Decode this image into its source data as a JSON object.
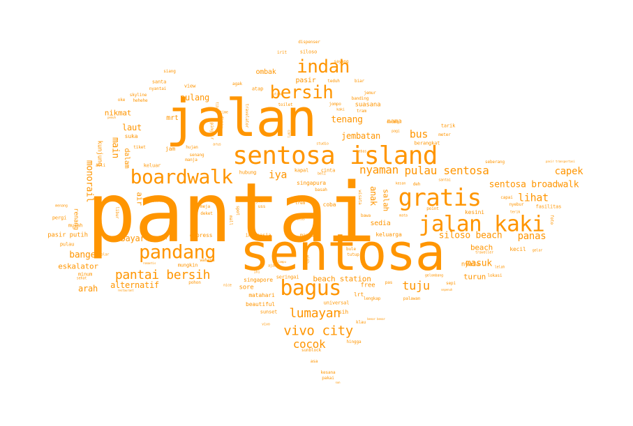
{
  "color": "#ff9500",
  "words": [
    {
      "text": "pantai",
      "size": 1.0
    },
    {
      "text": "sentosa",
      "size": 0.66
    },
    {
      "text": "jalan",
      "size": 0.68
    },
    {
      "text": "sentosa island",
      "size": 0.32
    },
    {
      "text": "gratis",
      "size": 0.3
    },
    {
      "text": "jalan kaki",
      "size": 0.27
    },
    {
      "text": "bagus",
      "size": 0.27
    },
    {
      "text": "boardwalk",
      "size": 0.25
    },
    {
      "text": "pandang",
      "size": 0.24
    },
    {
      "text": "bersih",
      "size": 0.23
    },
    {
      "text": "indah",
      "size": 0.23
    },
    {
      "text": "pantai bersih",
      "size": 0.16
    },
    {
      "text": "lumayan",
      "size": 0.16
    },
    {
      "text": "vivo city",
      "size": 0.17
    },
    {
      "text": "tuju",
      "size": 0.15
    },
    {
      "text": "pulau sentosa",
      "size": 0.14
    },
    {
      "text": "nyaman",
      "size": 0.14
    },
    {
      "text": "cocok",
      "size": 0.14
    },
    {
      "text": "iya",
      "size": 0.13
    },
    {
      "text": "lihat",
      "size": 0.13
    },
    {
      "text": "capek",
      "size": 0.12
    },
    {
      "text": "panas",
      "size": 0.12
    },
    {
      "text": "sentosa broadwalk",
      "size": 0.11
    },
    {
      "text": "siloso beach",
      "size": 0.11
    },
    {
      "text": "masuk",
      "size": 0.11
    },
    {
      "text": "bus",
      "size": 0.12
    },
    {
      "text": "tenang",
      "size": 0.11
    },
    {
      "text": "jembatan",
      "size": 0.1
    },
    {
      "text": "pulang",
      "size": 0.1
    },
    {
      "text": "laut",
      "size": 0.1
    },
    {
      "text": "nikmat",
      "size": 0.09
    },
    {
      "text": "main",
      "size": 0.11
    },
    {
      "text": "monorail",
      "size": 0.11
    },
    {
      "text": "banget",
      "size": 0.11
    },
    {
      "text": "bayar",
      "size": 0.1
    },
    {
      "text": "eskalator",
      "size": 0.09
    },
    {
      "text": "alternatif",
      "size": 0.1
    },
    {
      "text": "arah",
      "size": 0.1
    },
    {
      "text": "beach station",
      "size": 0.09
    },
    {
      "text": "turun",
      "size": 0.09
    },
    {
      "text": "beach",
      "size": 0.09
    },
    {
      "text": "nyata",
      "size": 0.07
    },
    {
      "text": "anak",
      "size": 0.1
    },
    {
      "text": "salah",
      "size": 0.09
    },
    {
      "text": "sedia",
      "size": 0.08
    },
    {
      "text": "keluarga",
      "size": 0.06
    },
    {
      "text": "pasir putih",
      "size": 0.07
    },
    {
      "text": "renang",
      "size": 0.07
    },
    {
      "text": "suasana",
      "size": 0.07
    },
    {
      "text": "pasir",
      "size": 0.08
    },
    {
      "text": "ombak",
      "size": 0.08
    },
    {
      "text": "mrt",
      "size": 0.08
    },
    {
      "text": "air",
      "size": 0.08
    },
    {
      "text": "dalam",
      "size": 0.08
    },
    {
      "text": "kunjung",
      "size": 0.07
    },
    {
      "text": "suka",
      "size": 0.06
    },
    {
      "text": "jam",
      "size": 0.06
    },
    {
      "text": "nama",
      "size": 0.07
    },
    {
      "text": "berangkat",
      "size": 0.05
    },
    {
      "text": "singapura",
      "size": 0.06
    },
    {
      "text": "kapal",
      "size": 0.05
    },
    {
      "text": "cinta",
      "size": 0.05
    },
    {
      "text": "hubung",
      "size": 0.05
    },
    {
      "text": "keluar",
      "size": 0.05
    },
    {
      "text": "express",
      "size": 0.06
    },
    {
      "text": "singapore",
      "size": 0.06
    },
    {
      "text": "indonesia",
      "size": 0.05
    },
    {
      "text": "sore",
      "size": 0.07
    },
    {
      "text": "free",
      "size": 0.07
    },
    {
      "text": "matahari",
      "size": 0.06
    },
    {
      "text": "beautiful",
      "size": 0.06
    },
    {
      "text": "sunset",
      "size": 0.05
    },
    {
      "text": "universal",
      "size": 0.05
    },
    {
      "text": "sih",
      "size": 0.06
    },
    {
      "text": "lrt",
      "size": 0.06
    },
    {
      "text": "seringai",
      "size": 0.05
    },
    {
      "text": "mandi",
      "size": 0.05
    },
    {
      "text": "coba",
      "size": 0.06
    },
    {
      "text": "kesini",
      "size": 0.06
    },
    {
      "text": "kecil",
      "size": 0.06
    },
    {
      "text": "murah",
      "size": 0.05
    },
    {
      "text": "pergi",
      "size": 0.05
    },
    {
      "text": "pulau",
      "size": 0.05
    },
    {
      "text": "mudah",
      "size": 0.05
    },
    {
      "text": "mungkin",
      "size": 0.05
    },
    {
      "text": "minum",
      "size": 0.05
    },
    {
      "text": "santa",
      "size": 0.05
    },
    {
      "text": "view",
      "size": 0.05
    },
    {
      "text": "siang",
      "size": 0.04
    },
    {
      "text": "skyline",
      "size": 0.04
    },
    {
      "text": "oke",
      "size": 0.04
    },
    {
      "text": "hehehe",
      "size": 0.04
    },
    {
      "text": "nyantai",
      "size": 0.04
    },
    {
      "text": "atap",
      "size": 0.05
    },
    {
      "text": "toilet",
      "size": 0.04
    },
    {
      "text": "siloso",
      "size": 0.05
    },
    {
      "text": "irit",
      "size": 0.04
    },
    {
      "text": "sayang",
      "size": 0.04
    },
    {
      "text": "teduh",
      "size": 0.04
    },
    {
      "text": "biar",
      "size": 0.04
    },
    {
      "text": "jemur",
      "size": 0.04
    },
    {
      "text": "dispenser",
      "size": 0.04
    },
    {
      "text": "banding",
      "size": 0.04
    },
    {
      "text": "tram",
      "size": 0.04
    },
    {
      "text": "kaki",
      "size": 0.03
    },
    {
      "text": "jompo",
      "size": 0.04
    },
    {
      "text": "tarik",
      "size": 0.05
    },
    {
      "text": "meter",
      "size": 0.04
    },
    {
      "text": "seberang",
      "size": 0.04
    },
    {
      "text": "hujan",
      "size": 0.04
    },
    {
      "text": "senang",
      "size": 0.04
    },
    {
      "text": "manja",
      "size": 0.04
    },
    {
      "text": "tiket",
      "size": 0.04
    },
    {
      "text": "asli",
      "size": 0.04
    },
    {
      "text": "basah",
      "size": 0.04
    },
    {
      "text": "trem",
      "size": 0.04
    },
    {
      "text": "bawa",
      "size": 0.04
    },
    {
      "text": "mata",
      "size": 0.03
    },
    {
      "text": "point",
      "size": 0.04
    },
    {
      "text": "capai",
      "size": 0.04
    },
    {
      "text": "nyebur",
      "size": 0.04
    },
    {
      "text": "fasilitas",
      "size": 0.04
    },
    {
      "text": "foto",
      "size": 0.04
    },
    {
      "text": "kesan",
      "size": 0.03
    },
    {
      "text": "deh",
      "size": 0.04
    },
    {
      "text": "meja",
      "size": 0.04
    },
    {
      "text": "deket",
      "size": 0.04
    },
    {
      "text": "mall",
      "size": 0.04
    },
    {
      "text": "spot",
      "size": 0.04
    },
    {
      "text": "wajib",
      "size": 0.04
    },
    {
      "text": "uss",
      "size": 0.04
    },
    {
      "text": "wisata",
      "size": 0.04
    },
    {
      "text": "alus",
      "size": 0.03
    },
    {
      "text": "libur",
      "size": 0.04
    },
    {
      "text": "wahana",
      "size": 0.04
    },
    {
      "text": "pohon",
      "size": 0.04
    },
    {
      "text": "nice",
      "size": 0.03
    },
    {
      "text": "pas",
      "size": 0.04
    },
    {
      "text": "lengkap",
      "size": 0.04
    },
    {
      "text": "palawan",
      "size": 0.04
    },
    {
      "text": "klau",
      "size": 0.04
    },
    {
      "text": "hingga",
      "size": 0.04
    },
    {
      "text": "sunblock",
      "size": 0.04
    },
    {
      "text": "asa",
      "size": 0.04
    },
    {
      "text": "kesana",
      "size": 0.04
    },
    {
      "text": "pakai",
      "size": 0.04
    },
    {
      "text": "vivo",
      "size": 0.03
    },
    {
      "text": "bule",
      "size": 0.04
    },
    {
      "text": "tutup",
      "size": 0.04
    },
    {
      "text": "lokasi",
      "size": 0.04
    },
    {
      "text": "lelah",
      "size": 0.03
    },
    {
      "text": "sepi",
      "size": 0.04
    },
    {
      "text": "dolar",
      "size": 0.03
    },
    {
      "text": "sehat",
      "size": 0.03
    },
    {
      "text": "gelombang",
      "size": 0.03
    },
    {
      "text": "traveller",
      "size": 0.03
    },
    {
      "text": "terik",
      "size": 0.03
    },
    {
      "text": "travelator",
      "size": 0.03
    },
    {
      "text": "utama",
      "size": 0.03
    },
    {
      "text": "agak",
      "size": 0.04
    },
    {
      "text": "cari",
      "size": 0.03
    },
    {
      "text": "bebas",
      "size": 0.03
    },
    {
      "text": "studio",
      "size": 0.03
    },
    {
      "text": "beli",
      "size": 0.03
    },
    {
      "text": "menang",
      "size": 0.03
    },
    {
      "text": "santai",
      "size": 0.03
    },
    {
      "text": "gelar",
      "size": 0.03
    },
    {
      "text": "pagi",
      "size": 0.03
    },
    {
      "text": "datang",
      "size": 0.03
    },
    {
      "text": "pinggir",
      "size": 0.03
    },
    {
      "text": "danau",
      "size": 0.03
    },
    {
      "text": "tiba",
      "size": 0.03
    },
    {
      "text": "time",
      "size": 0.03
    },
    {
      "text": "arus",
      "size": 0.03
    },
    {
      "text": "ini",
      "size": 0.03
    },
    {
      "text": "ajak",
      "size": 0.03
    },
    {
      "text": "restaurant",
      "size": 0.03
    },
    {
      "text": "romantis",
      "size": 0.03
    },
    {
      "text": "teknik",
      "size": 0.03
    },
    {
      "text": "lampu",
      "size": 0.03
    },
    {
      "text": "winds",
      "size": 0.03
    },
    {
      "text": "sepenuh",
      "size": 0.03
    },
    {
      "text": "penuh",
      "size": 0.03
    },
    {
      "text": "pasir transportasi",
      "size": 0.03
    },
    {
      "text": "benar benar",
      "size": 0.03
    },
    {
      "text": "sun",
      "size": 0.03
    }
  ]
}
